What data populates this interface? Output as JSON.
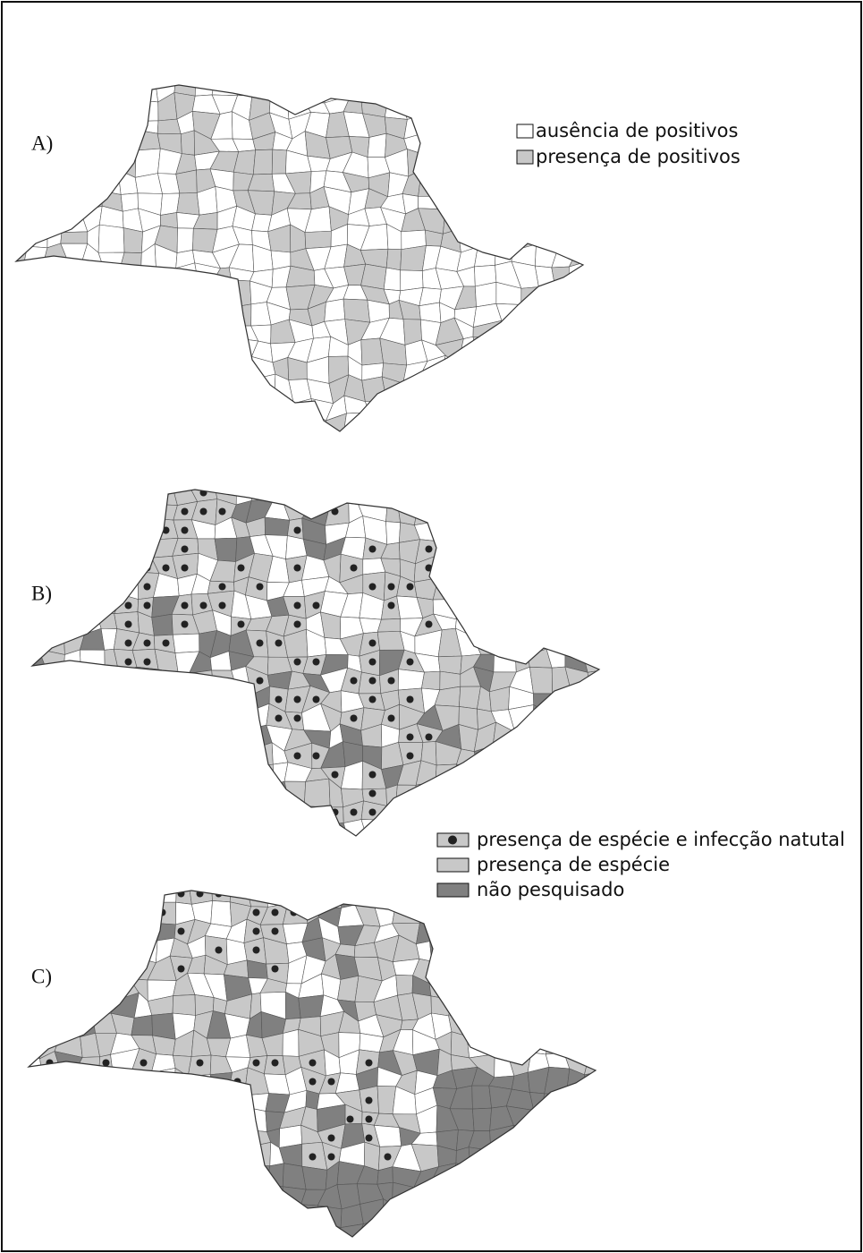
{
  "panels": [
    {
      "label": "A)"
    },
    {
      "label": "B)"
    },
    {
      "label": "C)"
    }
  ],
  "legend_a": {
    "items": [
      "ausência de positivos",
      "presença de positivos"
    ]
  },
  "legend_bc": {
    "items": [
      "presença de espécie e infecção natutal",
      "presença de espécie",
      "não pesquisado"
    ]
  }
}
